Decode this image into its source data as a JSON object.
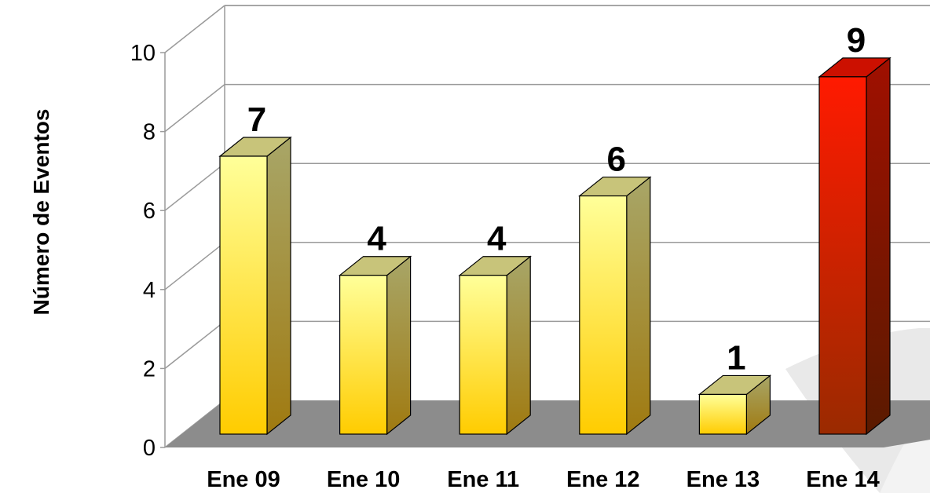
{
  "chart_data": {
    "type": "bar",
    "title": "",
    "xlabel": "",
    "ylabel": "Número de Eventos",
    "categories": [
      "Ene 09",
      "Ene 10",
      "Ene 11",
      "Ene 12",
      "Ene 13",
      "Ene 14"
    ],
    "values": [
      7,
      4,
      4,
      6,
      1,
      9
    ],
    "data_labels": [
      "7",
      "4",
      "4",
      "6",
      "1",
      "9"
    ],
    "ylim": [
      0,
      10
    ],
    "yticks": [
      "0",
      "2",
      "4",
      "6",
      "8",
      "10"
    ],
    "grid": true,
    "legend": "none",
    "highlight_index": 5,
    "colors": {
      "bar_light": "#ffff99",
      "bar_dark": "#ffcc00",
      "bar_side": "#a89a58",
      "bar_top": "#c8c47a",
      "highlight_light": "#ff1a00",
      "highlight_dark": "#b01400",
      "highlight_side": "#7a0d00",
      "highlight_top": "#cc1000",
      "floor": "#8c8c8c",
      "gridline": "#9a9a9a"
    }
  }
}
